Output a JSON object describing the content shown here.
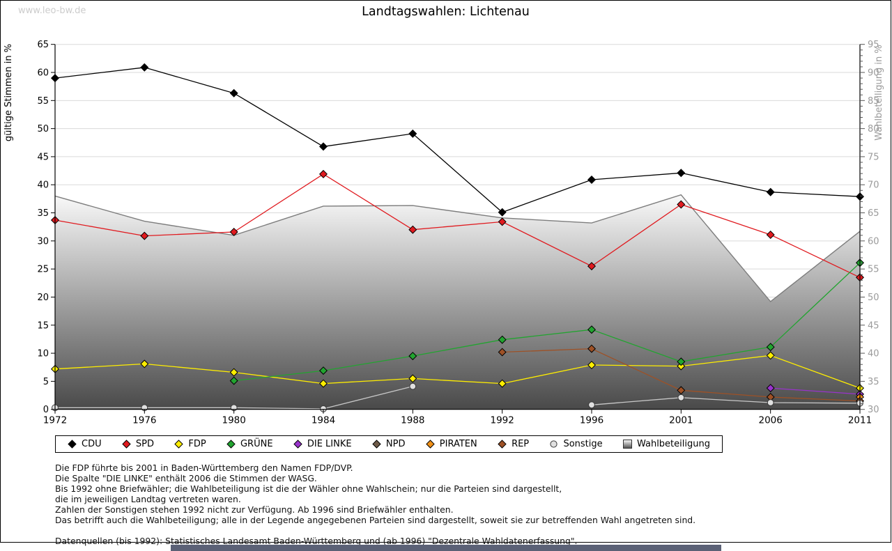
{
  "page": {
    "watermark": "www.leo-bw.de",
    "title": "Landtagswahlen: Lichtenau"
  },
  "chart_data": {
    "type": "line",
    "title": "Landtagswahlen: Lichtenau",
    "x": [
      1972,
      1976,
      1980,
      1984,
      1988,
      1992,
      1996,
      2001,
      2006,
      2011
    ],
    "ylabel_left": "gültige Stimmen in %",
    "ylabel_right": "Wahlbeteiligung in %",
    "ylim_left": [
      0,
      65
    ],
    "ylim_right": [
      30,
      95
    ],
    "grid": true,
    "legend_position": "bottom",
    "series": [
      {
        "name": "CDU",
        "axis": "left",
        "color": "#000000",
        "marker": "diamond",
        "values": [
          59.0,
          60.9,
          56.3,
          46.8,
          49.1,
          35.1,
          40.9,
          42.1,
          38.7,
          37.9
        ]
      },
      {
        "name": "SPD",
        "axis": "left",
        "color": "#e01a1f",
        "marker": "diamond",
        "values": [
          33.7,
          30.9,
          31.6,
          41.9,
          32.0,
          33.4,
          25.5,
          36.5,
          31.1,
          23.5
        ]
      },
      {
        "name": "FDP",
        "axis": "left",
        "color": "#ffee00",
        "marker": "diamond",
        "values": [
          7.2,
          8.1,
          6.6,
          4.6,
          5.5,
          4.6,
          7.9,
          7.7,
          9.6,
          3.8
        ]
      },
      {
        "name": "GRÜNE",
        "axis": "left",
        "color": "#22a430",
        "marker": "diamond",
        "values": [
          null,
          null,
          5.1,
          6.9,
          9.5,
          12.4,
          14.2,
          8.5,
          11.1,
          26.1
        ]
      },
      {
        "name": "DIE LINKE",
        "axis": "left",
        "color": "#9933cc",
        "marker": "diamond",
        "values": [
          null,
          null,
          null,
          null,
          null,
          null,
          null,
          null,
          3.8,
          2.7
        ]
      },
      {
        "name": "NPD",
        "axis": "left",
        "color": "#6e5a48",
        "marker": "diamond",
        "values": [
          null,
          null,
          null,
          null,
          null,
          null,
          null,
          null,
          null,
          null
        ]
      },
      {
        "name": "PIRATEN",
        "axis": "left",
        "color": "#f09018",
        "marker": "diamond",
        "values": [
          null,
          null,
          null,
          null,
          null,
          null,
          null,
          null,
          null,
          2.2
        ]
      },
      {
        "name": "REP",
        "axis": "left",
        "color": "#9e5126",
        "marker": "diamond",
        "values": [
          null,
          null,
          null,
          null,
          null,
          10.2,
          10.8,
          3.4,
          2.2,
          1.5
        ]
      },
      {
        "name": "Sonstige",
        "axis": "left",
        "color": "#c8c8c8",
        "marker": "circle",
        "values": [
          0.3,
          0.3,
          0.3,
          0.1,
          4.1,
          null,
          0.8,
          2.1,
          1.2,
          1.1
        ]
      },
      {
        "name": "Wahlbeteiligung",
        "axis": "right",
        "type": "area",
        "color": "#7d7d7d",
        "values": [
          68.0,
          63.5,
          61.0,
          66.2,
          66.3,
          64.1,
          63.2,
          68.2,
          49.2,
          61.7
        ]
      }
    ]
  },
  "legend": {
    "items": [
      {
        "label": "CDU",
        "color": "#000000",
        "shape": "diamond"
      },
      {
        "label": "SPD",
        "color": "#e01a1f",
        "shape": "diamond"
      },
      {
        "label": "FDP",
        "color": "#ffee00",
        "shape": "diamond"
      },
      {
        "label": "GRÜNE",
        "color": "#22a430",
        "shape": "diamond"
      },
      {
        "label": "DIE LINKE",
        "color": "#9933cc",
        "shape": "diamond"
      },
      {
        "label": "NPD",
        "color": "#6e5a48",
        "shape": "diamond"
      },
      {
        "label": "PIRATEN",
        "color": "#f09018",
        "shape": "diamond"
      },
      {
        "label": "REP",
        "color": "#9e5126",
        "shape": "diamond"
      },
      {
        "label": "Sonstige",
        "color": "#e0e0e0",
        "shape": "circle"
      },
      {
        "label": "Wahlbeteiligung",
        "color": "#999999",
        "shape": "gradient-square"
      }
    ]
  },
  "footnotes": {
    "lines": [
      "Die FDP führte bis 2001 in Baden-Württemberg den Namen FDP/DVP.",
      "Die Spalte \"DIE LINKE\" enthält 2006 die Stimmen der WASG.",
      "Bis 1992 ohne Briefwähler; die Wahlbeteiligung ist die der Wähler ohne Wahlschein; nur die Parteien sind dargestellt,",
      "die im jeweiligen Landtag vertreten waren.",
      "Zahlen der Sonstigen stehen 1992 nicht zur Verfügung. Ab 1996 sind Briefwähler enthalten.",
      "Das betrifft auch die Wahlbeteiligung; alle in der Legende angegebenen Parteien sind dargestellt, soweit sie zur betreffenden Wahl angetreten sind.",
      "",
      "Datenquellen (bis 1992): Statistisches Landesamt Baden-Württemberg und (ab 1996) \"Dezentrale Wahldatenerfassung\"."
    ]
  }
}
